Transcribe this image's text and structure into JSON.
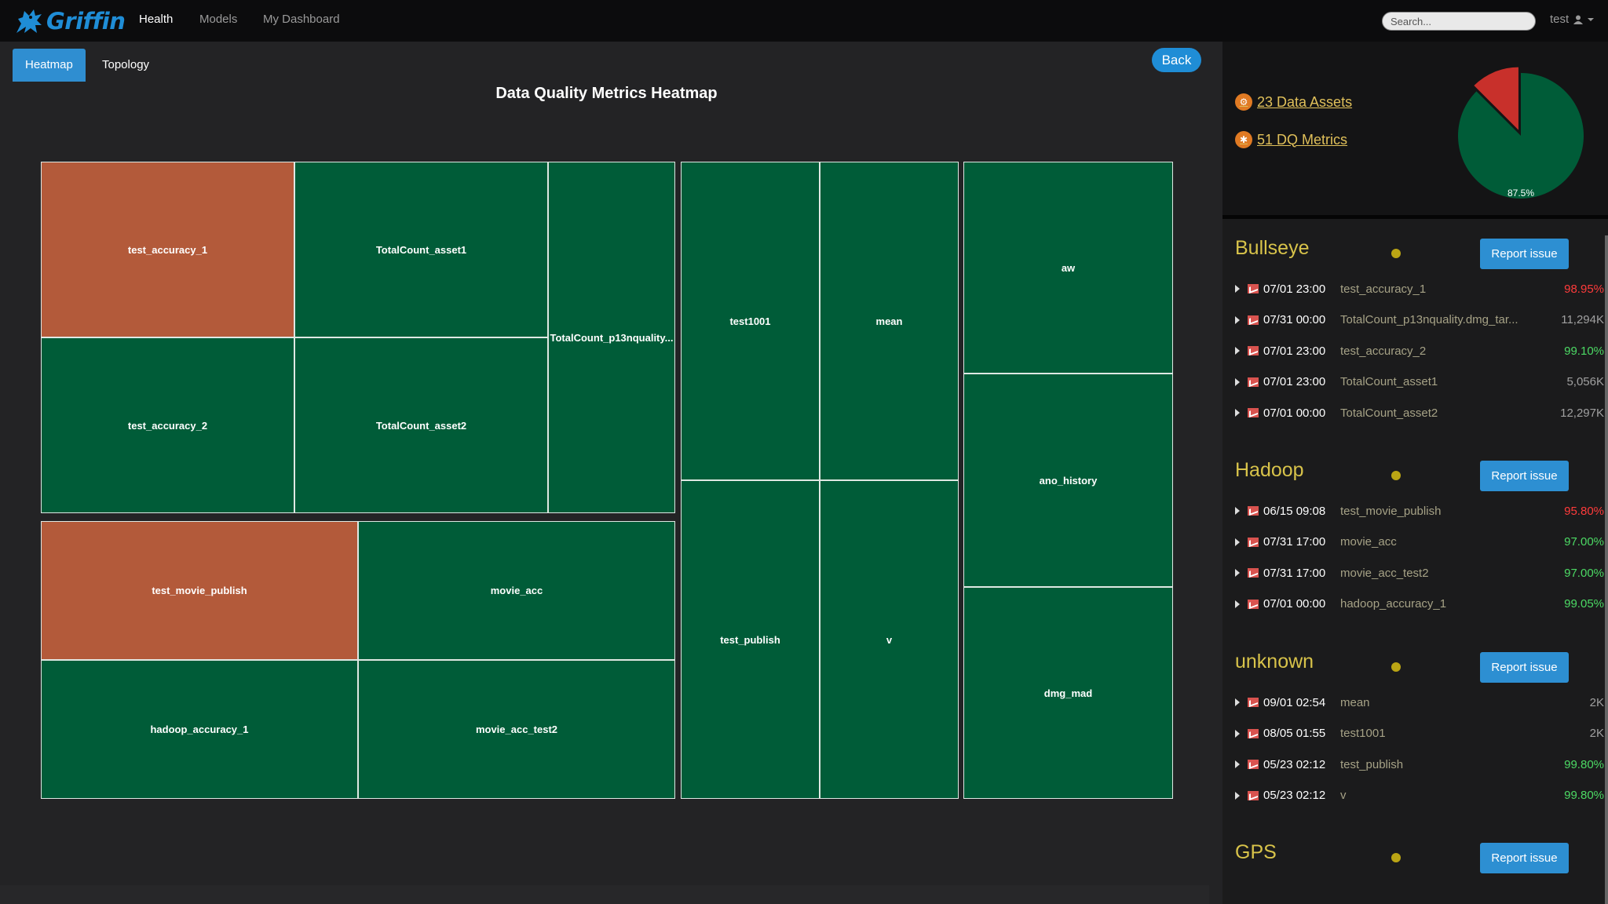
{
  "app": {
    "name": "Griffin"
  },
  "nav": {
    "items": [
      "Health",
      "Models",
      "My Dashboard"
    ],
    "active": "Health"
  },
  "search": {
    "placeholder": "Search..."
  },
  "user": {
    "name": "test"
  },
  "tabs": {
    "heatmap": "Heatmap",
    "topology": "Topology"
  },
  "back_label": "Back",
  "heatmap": {
    "title": "Data Quality Metrics Heatmap",
    "colors": {
      "good": "#005c38",
      "bad": "#b35a3a",
      "border": "#dfe8e3"
    },
    "cells": [
      {
        "label": "test_accuracy_1",
        "status": "bad"
      },
      {
        "label": "TotalCount_asset1",
        "status": "good"
      },
      {
        "label": "TotalCount_p13nquality...",
        "status": "good"
      },
      {
        "label": "test_accuracy_2",
        "status": "good"
      },
      {
        "label": "TotalCount_asset2",
        "status": "good"
      },
      {
        "label": "test_movie_publish",
        "status": "bad"
      },
      {
        "label": "movie_acc",
        "status": "good"
      },
      {
        "label": "hadoop_accuracy_1",
        "status": "good"
      },
      {
        "label": "movie_acc_test2",
        "status": "good"
      },
      {
        "label": "test1001",
        "status": "good"
      },
      {
        "label": "mean",
        "status": "good"
      },
      {
        "label": "test_publish",
        "status": "good"
      },
      {
        "label": "v",
        "status": "good"
      },
      {
        "label": "aw",
        "status": "good"
      },
      {
        "label": "ano_history",
        "status": "good"
      },
      {
        "label": "dmg_mad",
        "status": "good"
      }
    ]
  },
  "summary": {
    "data_assets": "23 Data Assets",
    "dq_metrics": "51 DQ Metrics",
    "pie": {
      "good_fraction": 0.875,
      "label": "87.5%",
      "good_color": "#005c38",
      "bad_color": "#c8302b"
    }
  },
  "report_label": "Report issue",
  "sections": [
    {
      "title": "Bullseye",
      "rows": [
        {
          "time": "07/01 23:00",
          "name": "test_accuracy_1",
          "value": "98.95%",
          "color": "#ff3b3b"
        },
        {
          "time": "07/31 00:00",
          "name": "TotalCount_p13nquality.dmg_tar...",
          "value": "11,294K",
          "color": "#a0a0a0"
        },
        {
          "time": "07/01 23:00",
          "name": "test_accuracy_2",
          "value": "99.10%",
          "color": "#4cd964"
        },
        {
          "time": "07/01 23:00",
          "name": "TotalCount_asset1",
          "value": "5,056K",
          "color": "#a0a0a0"
        },
        {
          "time": "07/01 00:00",
          "name": "TotalCount_asset2",
          "value": "12,297K",
          "color": "#a0a0a0"
        }
      ]
    },
    {
      "title": "Hadoop",
      "rows": [
        {
          "time": "06/15 09:08",
          "name": "test_movie_publish",
          "value": "95.80%",
          "color": "#ff3b3b"
        },
        {
          "time": "07/31 17:00",
          "name": "movie_acc",
          "value": "97.00%",
          "color": "#4cd964"
        },
        {
          "time": "07/31 17:00",
          "name": "movie_acc_test2",
          "value": "97.00%",
          "color": "#4cd964"
        },
        {
          "time": "07/01 00:00",
          "name": "hadoop_accuracy_1",
          "value": "99.05%",
          "color": "#4cd964"
        }
      ]
    },
    {
      "title": "unknown",
      "rows": [
        {
          "time": "09/01 02:54",
          "name": "mean",
          "value": "2K",
          "color": "#a0a0a0"
        },
        {
          "time": "08/05 01:55",
          "name": "test1001",
          "value": "2K",
          "color": "#a0a0a0"
        },
        {
          "time": "05/23 02:12",
          "name": "test_publish",
          "value": "99.80%",
          "color": "#4cd964"
        },
        {
          "time": "05/23 02:12",
          "name": "v",
          "value": "99.80%",
          "color": "#4cd964"
        }
      ]
    },
    {
      "title": "GPS",
      "rows": []
    }
  ]
}
